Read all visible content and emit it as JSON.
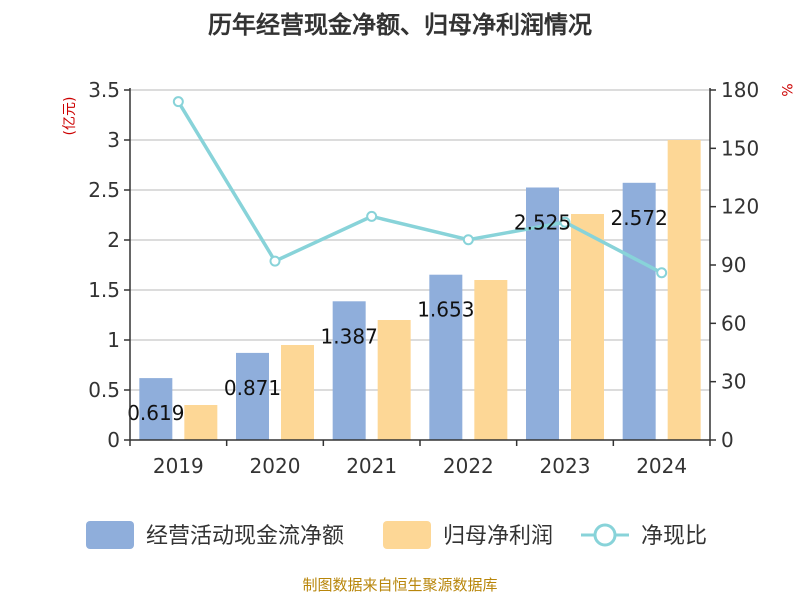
{
  "title": "历年经营现金净额、归母净利润情况",
  "source": "制图数据来自恒生聚源数据库",
  "colors": {
    "cash": "#8faedb",
    "profit": "#fdd796",
    "ratio": "#88d3d9",
    "unit": "#cc0000",
    "source": "#b8860b"
  },
  "chart_data": {
    "type": "bar",
    "categories": [
      "2019",
      "2020",
      "2021",
      "2022",
      "2023",
      "2024"
    ],
    "series": [
      {
        "name": "经营活动现金流净额",
        "type": "bar",
        "axis": "left",
        "values": [
          0.619,
          0.871,
          1.387,
          1.653,
          2.525,
          2.572
        ],
        "labels": [
          "0.619",
          "0.871",
          "1.387",
          "1.653",
          "2.525",
          "2.572"
        ]
      },
      {
        "name": "归母净利润",
        "type": "bar",
        "axis": "left",
        "values": [
          0.35,
          0.95,
          1.2,
          1.6,
          2.26,
          3.0
        ]
      },
      {
        "name": "净现比",
        "type": "line",
        "axis": "right",
        "values": [
          174,
          92,
          115,
          103,
          112,
          86
        ]
      }
    ],
    "y_left": {
      "unit": "(亿元)",
      "min": 0,
      "max": 3.5,
      "ticks": [
        "0",
        "0.5",
        "1",
        "1.5",
        "2",
        "2.5",
        "3",
        "3.5"
      ]
    },
    "y_right": {
      "unit": "%",
      "min": 0,
      "max": 180,
      "ticks": [
        "0",
        "30",
        "60",
        "90",
        "120",
        "150",
        "180"
      ]
    },
    "grid": true,
    "legend": "bottom"
  }
}
